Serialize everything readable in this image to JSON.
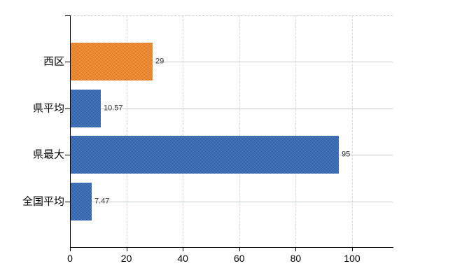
{
  "chart_data": {
    "type": "bar",
    "orientation": "horizontal",
    "title": "",
    "xlabel": "",
    "ylabel": "",
    "categories": [
      "西区",
      "県平均",
      "県最大",
      "全国平均"
    ],
    "values": [
      29,
      10.57,
      95,
      7.47
    ],
    "value_labels": [
      "29",
      "10.57",
      "95",
      "7.47"
    ],
    "bar_colors": [
      "#e98732",
      "#3c6cb1",
      "#3c6cb1",
      "#3c6cb1"
    ],
    "bar_dither_colors": [
      [
        "#f79b3e",
        "#dc7426"
      ],
      [
        "#4a7bc4",
        "#2f5e9e"
      ],
      [
        "#4a7bc4",
        "#2f5e9e"
      ],
      [
        "#4a7bc4",
        "#2f5e9e"
      ]
    ],
    "x_ticks": [
      "0",
      "20",
      "40",
      "60",
      "80",
      "100"
    ],
    "x_tick_values": [
      0,
      20,
      40,
      60,
      80,
      100
    ],
    "xlim": [
      0,
      114.4
    ],
    "grid": {
      "vertical": true,
      "horizontal": true,
      "top_border": true
    },
    "legend": "none",
    "colors": {
      "axis": "#000000",
      "gridline_horizontal": "#c6cfc6",
      "gridline_vertical": "#d6d6da",
      "plot_top_border": "#cbcbcf",
      "category_label": "#000000",
      "value_label": "#333333",
      "tick_label": "#000000",
      "background": "#ffffff"
    }
  }
}
